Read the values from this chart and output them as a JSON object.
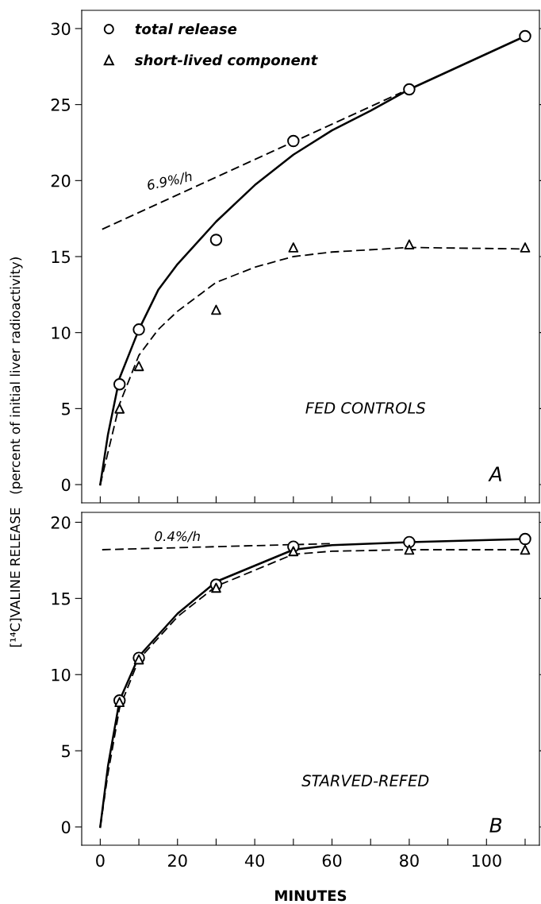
{
  "chart_data": [
    {
      "type": "line",
      "ylabel": "[¹⁴C]VALINE RELEASE   (percent of initial liver radioactivity)",
      "xlim": [
        -4.8,
        113.7
      ],
      "ylim": [
        -1.2,
        31.2
      ],
      "xticks": [
        0,
        {
          "value": 10,
          "label": null
        },
        20,
        {
          "value": 30,
          "label": null
        },
        40,
        {
          "value": 50,
          "label": null
        },
        60,
        {
          "value": 70,
          "label": null
        },
        80,
        {
          "value": 90,
          "label": null
        },
        100,
        {
          "value": 110,
          "label": null
        }
      ],
      "yticks": [
        0,
        5,
        10,
        15,
        20,
        25,
        30
      ],
      "tick_labels": "y",
      "legend": "top left",
      "grid": false,
      "annotations": [
        "FED CONTROLS",
        "A",
        {
          "text": "6.9%/h",
          "x": 18,
          "y": 18.9
        }
      ],
      "series": [
        {
          "name": "total release",
          "type": "scatter",
          "marker": "circle",
          "color": "#000000",
          "x": [
            5,
            10,
            30,
            50,
            80,
            110
          ],
          "values": [
            6.6,
            10.2,
            16.1,
            22.6,
            26.0,
            29.5
          ]
        },
        {
          "name": "short-lived component",
          "type": "scatter",
          "marker": "triangle",
          "color": "#000000",
          "x": [
            5,
            10,
            30,
            50,
            80,
            110
          ],
          "values": [
            5.0,
            7.8,
            11.5,
            15.6,
            15.8,
            15.6
          ]
        },
        {
          "line_style": "solid",
          "color": "#000000",
          "x": [
            0,
            2,
            5,
            10,
            15,
            20,
            30,
            40,
            50,
            60,
            70,
            80,
            110
          ],
          "values": [
            0,
            3.3,
            7.0,
            10.2,
            12.8,
            14.5,
            17.3,
            19.7,
            21.7,
            23.3,
            24.6,
            26.0,
            29.5
          ]
        },
        {
          "line_style": "dashed",
          "color": "#000000",
          "x": [
            0,
            5,
            10,
            15,
            20,
            30,
            40,
            50,
            60,
            80,
            110
          ],
          "values": [
            0,
            5.3,
            8.5,
            10.2,
            11.4,
            13.3,
            14.3,
            15.0,
            15.3,
            15.6,
            15.5
          ]
        },
        {
          "line_style": "dashed",
          "color": "#000000",
          "x": [
            0.5,
            78
          ],
          "values": [
            16.8,
            25.8
          ]
        }
      ]
    },
    {
      "type": "line",
      "xlabel": "MINUTES",
      "xlim": [
        -4.8,
        113.7
      ],
      "ylim": [
        -1.2,
        20.65
      ],
      "xticks": [
        0,
        {
          "value": 10,
          "label": null
        },
        20,
        {
          "value": 30,
          "label": null
        },
        40,
        {
          "value": 50,
          "label": null
        },
        60,
        {
          "value": 70,
          "label": null
        },
        80,
        {
          "value": 90,
          "label": null
        },
        100,
        {
          "value": 110,
          "label": null
        }
      ],
      "yticks": [
        0,
        5,
        10,
        15,
        20
      ],
      "grid": false,
      "annotations": [
        "STARVED-REFED",
        "B",
        {
          "text": "0.4%/h",
          "x": 20,
          "y": 18.3
        }
      ],
      "series": [
        {
          "type": "scatter",
          "marker": "circle",
          "color": "#000000",
          "x": [
            5,
            10,
            30,
            50,
            80,
            110
          ],
          "values": [
            8.3,
            11.1,
            15.9,
            18.4,
            18.7,
            18.9
          ]
        },
        {
          "type": "scatter",
          "marker": "triangle",
          "color": "#000000",
          "x": [
            5,
            10,
            30,
            50,
            80,
            110
          ],
          "values": [
            8.2,
            11.0,
            15.7,
            18.1,
            18.2,
            18.2
          ]
        },
        {
          "line_style": "solid",
          "color": "#000000",
          "x": [
            0,
            2,
            5,
            10,
            20,
            30,
            50,
            60,
            80,
            110
          ],
          "values": [
            0,
            4.0,
            8.3,
            11.2,
            14.0,
            16.1,
            18.2,
            18.5,
            18.7,
            18.9
          ]
        },
        {
          "line_style": "dashed",
          "color": "#000000",
          "x": [
            0,
            2,
            5,
            10,
            20,
            30,
            50,
            60,
            80,
            110
          ],
          "values": [
            0,
            3.5,
            7.8,
            11.0,
            13.8,
            15.8,
            17.9,
            18.1,
            18.2,
            18.2
          ]
        },
        {
          "line_style": "dashed",
          "color": "#000000",
          "x": [
            0.5,
            60
          ],
          "values": [
            18.2,
            18.6
          ]
        }
      ]
    }
  ]
}
